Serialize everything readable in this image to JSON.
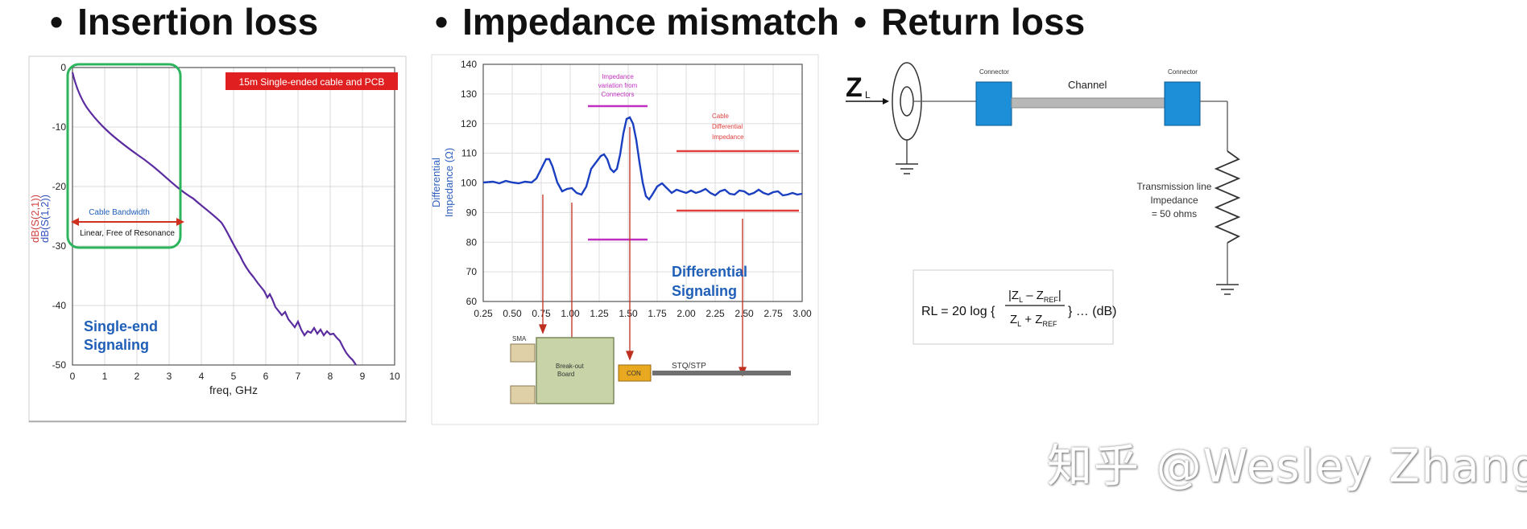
{
  "headings": {
    "bullet": "•",
    "insertion": "Insertion loss",
    "impedance": "Impedance mismatch",
    "return": "Return loss"
  },
  "insertion_panel": {
    "banner": "15m Single-ended cable and PCB",
    "y_label_1": "dB(S(2,1))",
    "y_label_2": "dB(S(1,2))",
    "x_label": "freq, GHz",
    "bandwidth_label": "Cable Bandwidth",
    "linear_label": "Linear, Free of Resonance",
    "signaling_1": "Single-end",
    "signaling_2": "Signaling",
    "x_ticks": [
      "0",
      "1",
      "2",
      "3",
      "4",
      "5",
      "6",
      "7",
      "8",
      "9",
      "10"
    ],
    "y_ticks": [
      "0",
      "-10",
      "-20",
      "-30",
      "-40",
      "-50"
    ],
    "colors": {
      "curve": "#5a2ca0",
      "banner": "#e02020",
      "box": "#2db55d",
      "arrow": "#d03020",
      "signaling": "#1f5fb8"
    }
  },
  "impedance_panel": {
    "y_label_1": "Differential",
    "y_label_2": "Impedance (Ω)",
    "y_ticks": [
      "140",
      "130",
      "120",
      "110",
      "100",
      "90",
      "80",
      "70",
      "60"
    ],
    "x_ticks": [
      "0.25",
      "0.50",
      "0.75",
      "1.00",
      "1.25",
      "1.50",
      "1.75",
      "2.00",
      "2.25",
      "2.50",
      "2.75",
      "3.00"
    ],
    "connector_note_1": "Impedance",
    "connector_note_2": "variation from",
    "connector_note_3": "Connectors",
    "cable_note_1": "Cable",
    "cable_note_2": "Differential",
    "cable_note_3": "Impedance",
    "signaling_1": "Differential",
    "signaling_2": "Signaling",
    "sma_label": "SMA",
    "board_label_1": "Break-out",
    "board_label_2": "Board",
    "con_label": "CON",
    "cable_label": "STQ/STP",
    "colors": {
      "curve": "#1a3fc0",
      "magenta": "#c030c0",
      "red_line": "#e04040",
      "arrow": "#c03020"
    }
  },
  "return_panel": {
    "zl_main": "Z",
    "zl_sub": "L",
    "connector_left": "Connector",
    "connector_right": "Connector",
    "channel": "Channel",
    "tline_1": "Transmission line",
    "tline_2": "Impedance",
    "tline_3": "= 50 ohms",
    "formula_prefix": "RL = 20 log {",
    "formula_num": "|Z",
    "formula_num_sub": "L",
    "formula_num_mid": " – Z",
    "formula_num_sub2": "REF",
    "formula_num_end": "|",
    "formula_den": "Z",
    "formula_den_sub": "L",
    "formula_den_mid": " + Z",
    "formula_den_sub2": "REF",
    "formula_suffix": "} … (dB)",
    "colors": {
      "connector": "#1c8fd8",
      "channel": "#b8b8b8"
    }
  },
  "watermark": "知乎 @Wesley Zhang"
}
